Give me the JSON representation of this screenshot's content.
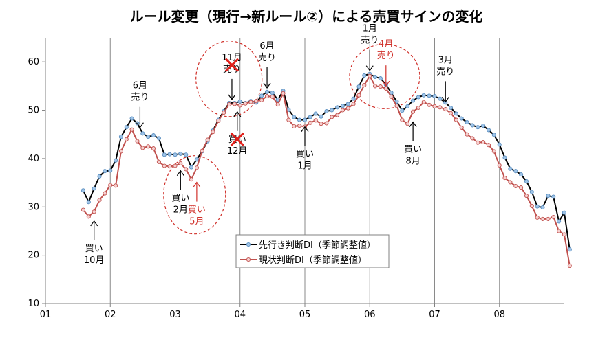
{
  "chart_data": {
    "type": "line",
    "title": "ルール変更（現行→新ルール②）による売買サインの変化",
    "xlabel": "",
    "ylabel": "",
    "ylim": [
      10,
      65
    ],
    "yticks": [
      10,
      20,
      30,
      40,
      50,
      60
    ],
    "xlim": [
      2001.0,
      2009.0
    ],
    "xticks": [
      {
        "x": 2001,
        "label": "01"
      },
      {
        "x": 2002,
        "label": "02"
      },
      {
        "x": 2003,
        "label": "03"
      },
      {
        "x": 2004,
        "label": "04"
      },
      {
        "x": 2005,
        "label": "05"
      },
      {
        "x": 2006,
        "label": "06"
      },
      {
        "x": 2007,
        "label": "07"
      },
      {
        "x": 2008,
        "label": "08"
      }
    ],
    "vertical_grid": [
      2002,
      2003,
      2004,
      2005,
      2006,
      2007,
      2008
    ],
    "legend_position": "bottom-center",
    "series": [
      {
        "name": "先行き判断DI（季節調整値）",
        "color": "#000000",
        "marker_fill": "#9fc3e6",
        "marker_stroke": "#5b8fc0",
        "x_start": 2001.583,
        "x_step": 0.08333,
        "values": [
          33.4,
          31.0,
          33.8,
          36.3,
          37.4,
          37.5,
          39.6,
          44.5,
          46.5,
          48.3,
          47.3,
          45.2,
          44.5,
          44.8,
          44.2,
          40.8,
          40.9,
          40.8,
          41.0,
          40.8,
          38.2,
          39.8,
          41.5,
          43.6,
          45.8,
          48.0,
          49.8,
          51.5,
          51.5,
          51.8,
          51.5,
          51.9,
          51.6,
          53.0,
          53.8,
          53.6,
          52.2,
          54.0,
          50.1,
          48.6,
          48.0,
          48.0,
          48.6,
          49.3,
          48.7,
          49.8,
          50.0,
          50.6,
          50.9,
          51.3,
          52.4,
          54.9,
          57.2,
          57.5,
          56.9,
          56.6,
          55.3,
          53.6,
          51.8,
          49.9,
          50.8,
          52.0,
          52.7,
          53.1,
          53.0,
          52.9,
          52.4,
          51.6,
          50.5,
          49.3,
          48.3,
          47.5,
          46.9,
          46.5,
          46.8,
          45.9,
          44.9,
          42.9,
          40.2,
          37.9,
          37.4,
          36.7,
          35.3,
          33.1,
          30.1,
          29.9,
          32.3,
          32.1,
          27.0,
          28.8,
          21.2
        ]
      },
      {
        "name": "現状判断DI（季節調整値）",
        "color": "#c0504d",
        "marker_fill": "#f6d0cf",
        "marker_stroke": "#c0504d",
        "x_start": 2001.583,
        "x_step": 0.08333,
        "values": [
          29.4,
          28.0,
          29.0,
          31.4,
          32.8,
          34.5,
          34.4,
          41.5,
          44.0,
          46.0,
          43.6,
          42.2,
          42.5,
          42.1,
          39.3,
          38.5,
          38.4,
          38.5,
          39.0,
          37.8,
          35.7,
          38.1,
          41.6,
          43.9,
          45.5,
          47.8,
          49.5,
          51.2,
          51.3,
          51.0,
          51.4,
          51.7,
          51.9,
          52.1,
          52.9,
          52.8,
          51.2,
          53.5,
          48.0,
          46.7,
          46.8,
          46.6,
          47.4,
          47.9,
          47.2,
          47.3,
          48.6,
          49.0,
          50.0,
          50.4,
          51.3,
          53.1,
          55.2,
          57.1,
          55.0,
          54.9,
          54.5,
          52.8,
          50.9,
          48.0,
          47.2,
          49.7,
          50.5,
          51.7,
          51.1,
          50.8,
          50.6,
          50.2,
          49.4,
          48.0,
          46.4,
          45.0,
          44.2,
          43.3,
          43.4,
          42.8,
          41.5,
          38.6,
          36.0,
          35.1,
          34.3,
          34.0,
          32.3,
          30.2,
          27.8,
          27.5,
          27.5,
          27.9,
          25.0,
          24.3,
          17.8
        ]
      }
    ],
    "annotations": [
      {
        "lines": [
          "6月",
          "売り"
        ],
        "color": "black",
        "arrow": "down",
        "x": 2002.458,
        "y": 46.0,
        "crossed": false
      },
      {
        "lines": [
          "11月",
          "売り"
        ],
        "color": "black",
        "arrow": "down",
        "x": 2003.875,
        "y": 51.8,
        "crossed": true
      },
      {
        "lines": [
          "6月",
          "売り"
        ],
        "color": "black",
        "arrow": "down",
        "x": 2004.417,
        "y": 54.2,
        "crossed": false
      },
      {
        "lines": [
          "1月",
          "売り"
        ],
        "color": "black",
        "arrow": "down",
        "x": 2006.0,
        "y": 57.8,
        "crossed": false
      },
      {
        "lines": [
          "4月",
          "売り"
        ],
        "color": "red",
        "arrow": "down",
        "x": 2006.25,
        "y": 54.6,
        "crossed": false
      },
      {
        "lines": [
          "3月",
          "売り"
        ],
        "color": "black",
        "arrow": "down",
        "x": 2007.167,
        "y": 51.3,
        "crossed": false
      },
      {
        "lines": [
          "買い",
          "10月"
        ],
        "color": "black",
        "arrow": "up",
        "x": 2001.75,
        "y": 27.5,
        "crossed": false
      },
      {
        "lines": [
          "買い",
          "2月"
        ],
        "color": "black",
        "arrow": "up",
        "x": 2003.083,
        "y": 37.9,
        "crossed": false
      },
      {
        "lines": [
          "買い",
          "5月"
        ],
        "color": "red",
        "arrow": "up",
        "x": 2003.333,
        "y": 35.5,
        "crossed": false
      },
      {
        "lines": [
          "買い",
          "12月"
        ],
        "color": "black",
        "arrow": "up",
        "x": 2003.958,
        "y": 50.1,
        "crossed": true
      },
      {
        "lines": [
          "買い",
          "1月"
        ],
        "color": "black",
        "arrow": "up",
        "x": 2005.0,
        "y": 47.0,
        "crossed": false
      },
      {
        "lines": [
          "買い",
          "8月"
        ],
        "color": "black",
        "arrow": "up",
        "x": 2006.667,
        "y": 48.0,
        "crossed": false
      }
    ]
  }
}
